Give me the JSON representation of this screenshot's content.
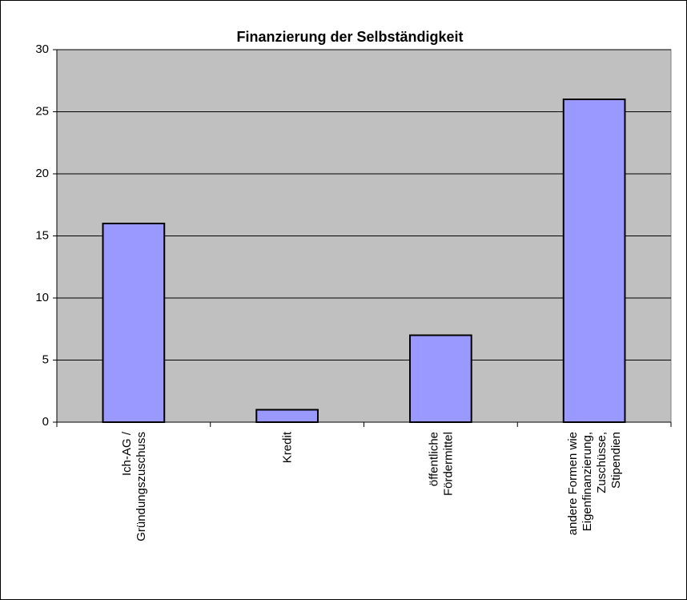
{
  "chart_data": {
    "type": "bar",
    "title": "Finanzierung der Selbständigkeit",
    "categories": [
      "Ich-AG /\nGründungszuschuss",
      "Kredit",
      "öffentliche\nFördermittel",
      "andere Formen wie\nEigenfinanzierung,\nZuschüsse,\nStipendien"
    ],
    "values": [
      16,
      1,
      7,
      26
    ],
    "color": "#9999ff",
    "ylim": [
      0,
      30
    ],
    "yticks": [
      0,
      5,
      10,
      15,
      20,
      25,
      30
    ],
    "grid": true
  }
}
